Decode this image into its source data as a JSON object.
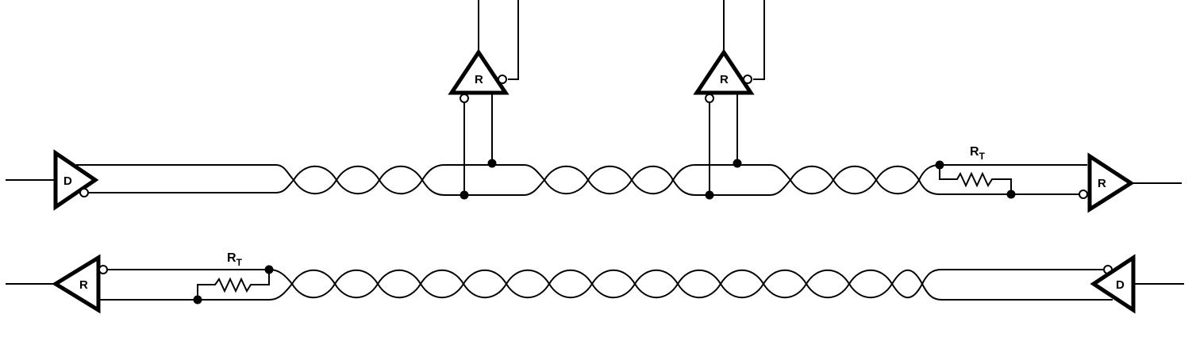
{
  "labels": {
    "driver": "D",
    "receiver": "R",
    "termination_main": "R",
    "termination_sub": "T"
  },
  "colors": {
    "line": "#000000",
    "background": "#ffffff"
  }
}
